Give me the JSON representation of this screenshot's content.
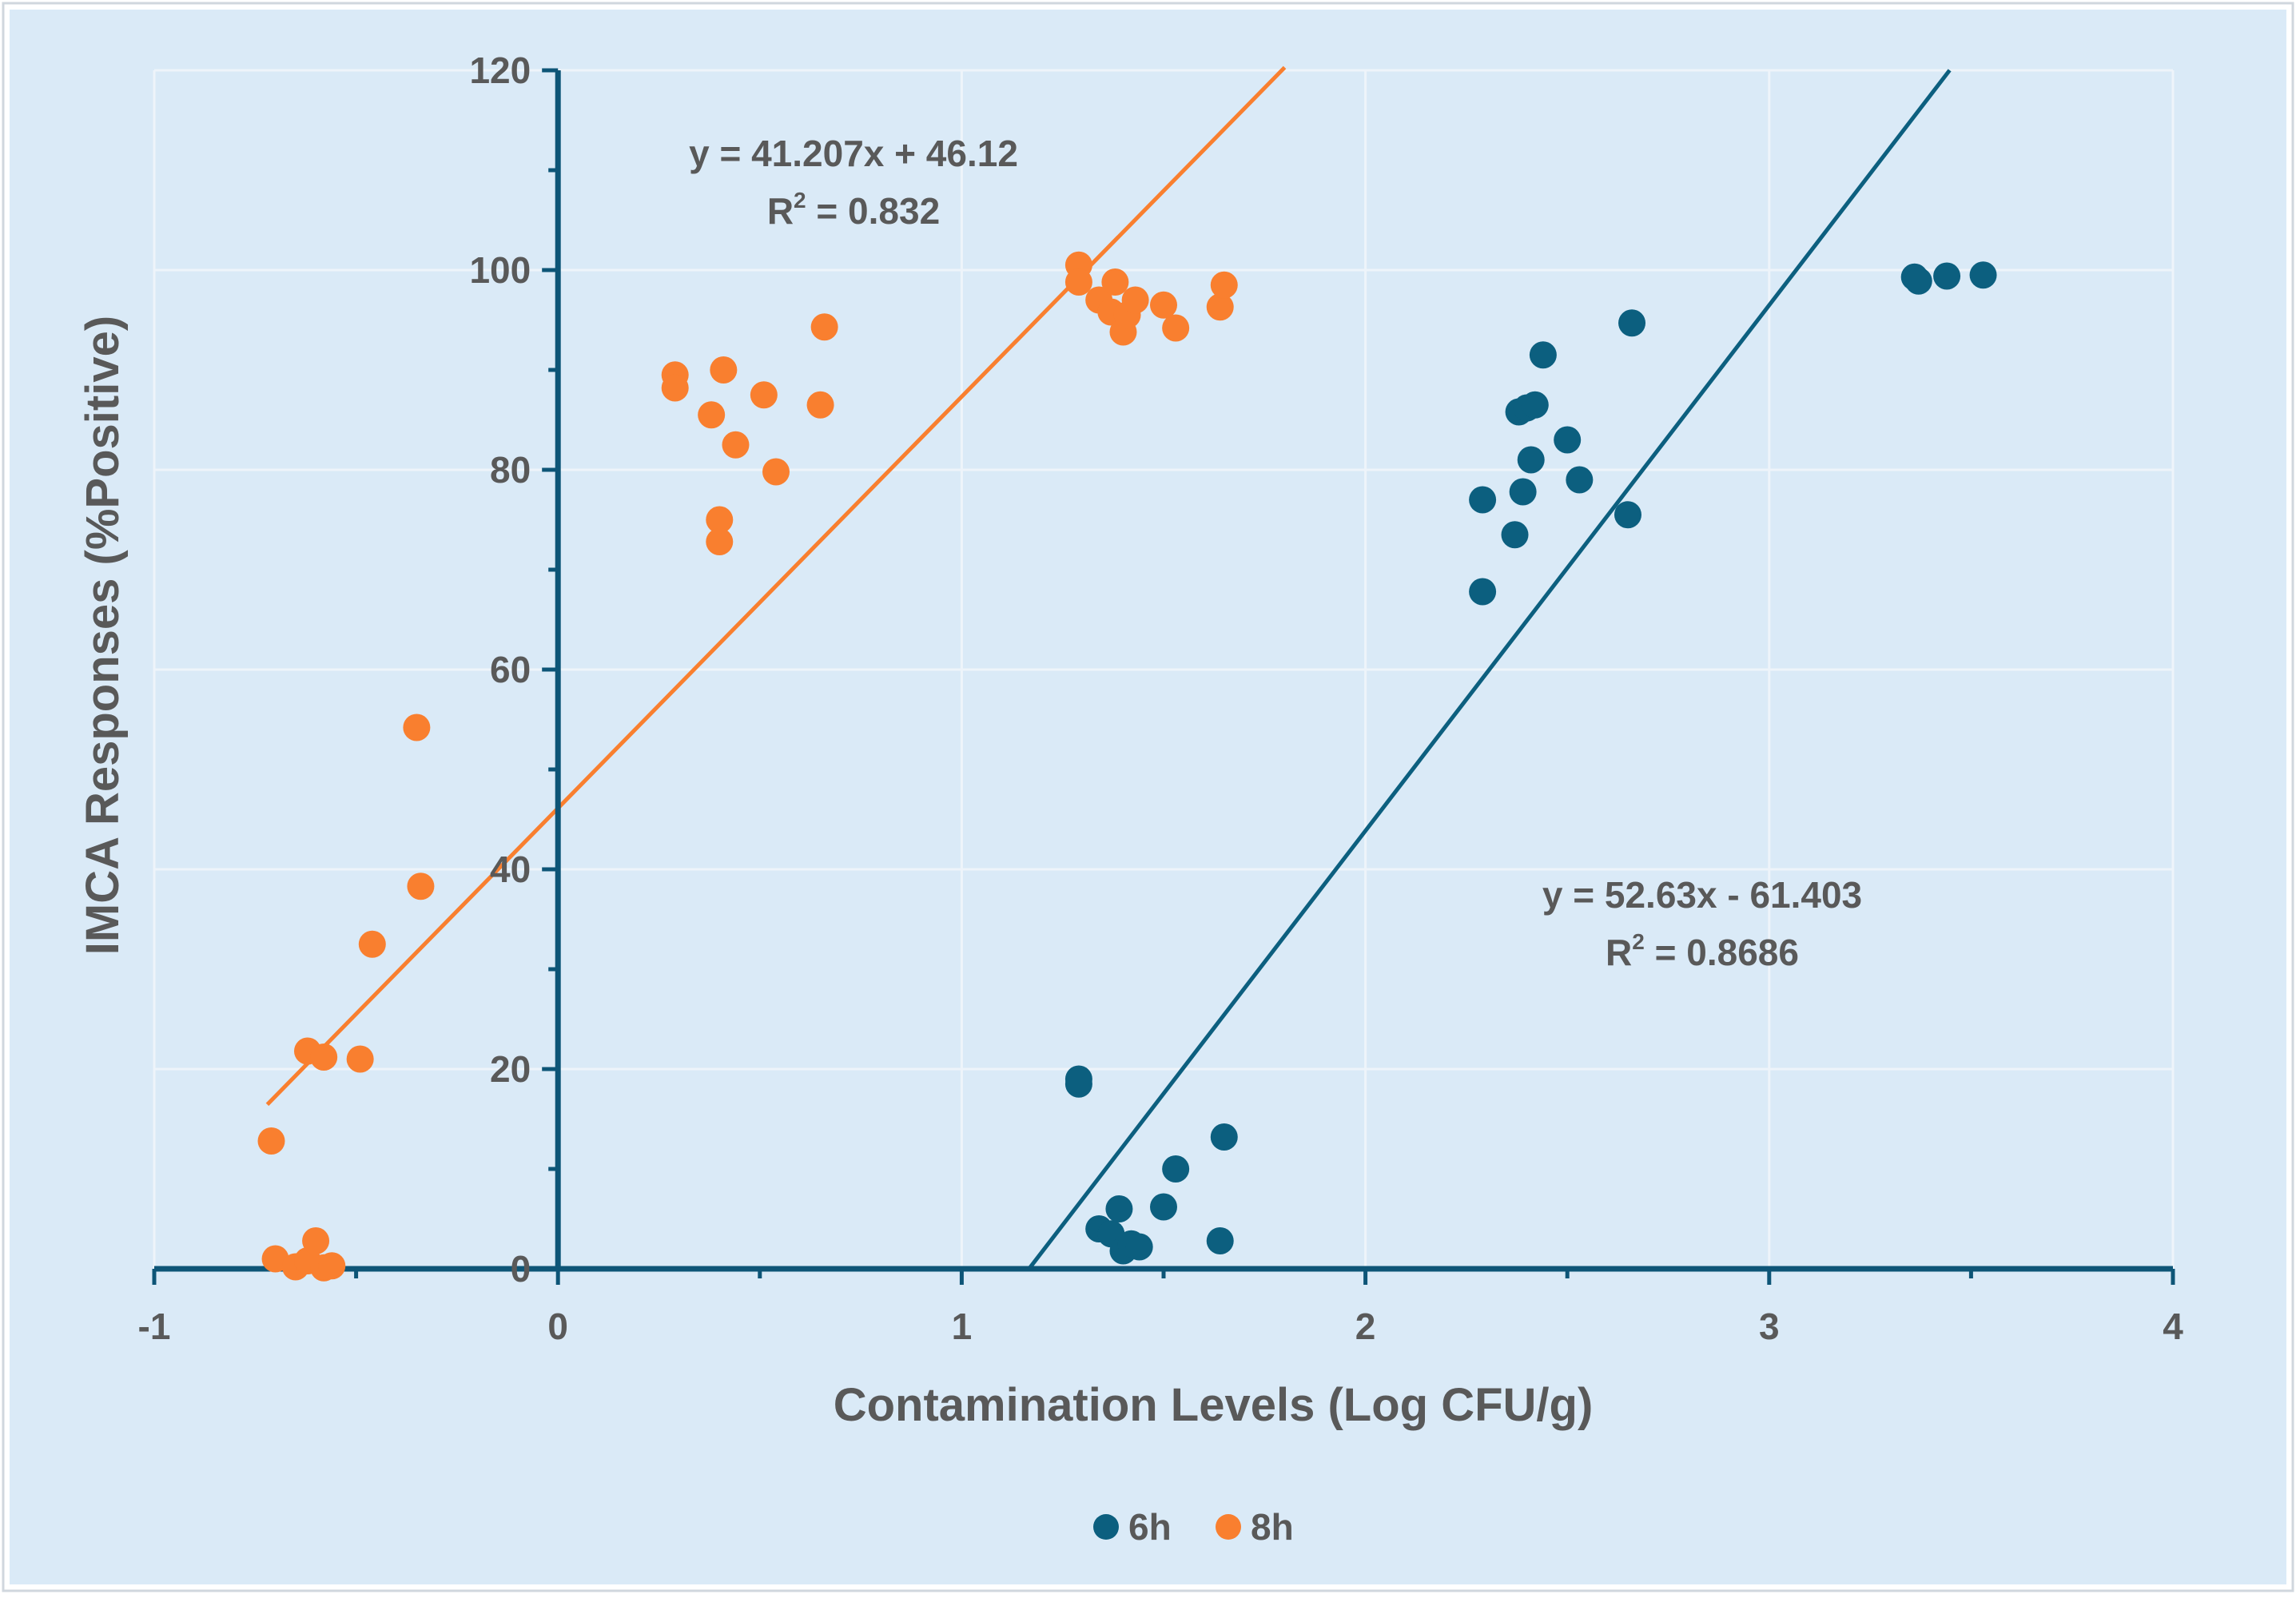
{
  "chart_data": {
    "type": "scatter",
    "title": "",
    "xlabel": "Contamination Levels (Log CFU/g)",
    "ylabel": "IMCA Responses (%Positive)",
    "xlim": [
      -1,
      4
    ],
    "ylim": [
      0,
      120
    ],
    "x_ticks": [
      -1,
      0,
      1,
      2,
      3,
      4
    ],
    "y_ticks": [
      0,
      20,
      40,
      60,
      80,
      100,
      120
    ],
    "grid": true,
    "legend_position": "bottom-center",
    "colors": {
      "background": "#daeaf7",
      "axis": "#0d5577",
      "grid": "#eef4fa",
      "series_6h": "#0c5f7f",
      "series_8h": "#f97f2f",
      "text": "#595959"
    },
    "series": [
      {
        "name": "6h",
        "color": "#0c5f7f",
        "points": [
          {
            "x": 1.29,
            "y": 18.5
          },
          {
            "x": 1.29,
            "y": 19.0
          },
          {
            "x": 1.34,
            "y": 4.0
          },
          {
            "x": 1.37,
            "y": 3.5
          },
          {
            "x": 1.39,
            "y": 6.0
          },
          {
            "x": 1.4,
            "y": 1.8
          },
          {
            "x": 1.42,
            "y": 2.5
          },
          {
            "x": 1.44,
            "y": 2.2
          },
          {
            "x": 1.5,
            "y": 6.2
          },
          {
            "x": 1.53,
            "y": 10.0
          },
          {
            "x": 1.64,
            "y": 2.8
          },
          {
            "x": 1.65,
            "y": 13.2
          },
          {
            "x": 2.29,
            "y": 77.0
          },
          {
            "x": 2.29,
            "y": 67.8
          },
          {
            "x": 2.37,
            "y": 73.5
          },
          {
            "x": 2.38,
            "y": 85.8
          },
          {
            "x": 2.39,
            "y": 77.8
          },
          {
            "x": 2.4,
            "y": 86.2
          },
          {
            "x": 2.41,
            "y": 81.0
          },
          {
            "x": 2.42,
            "y": 86.5
          },
          {
            "x": 2.44,
            "y": 91.5
          },
          {
            "x": 2.5,
            "y": 83.0
          },
          {
            "x": 2.53,
            "y": 79.0
          },
          {
            "x": 2.65,
            "y": 75.5
          },
          {
            "x": 2.66,
            "y": 94.7
          },
          {
            "x": 3.36,
            "y": 99.3
          },
          {
            "x": 3.37,
            "y": 98.9
          },
          {
            "x": 3.44,
            "y": 99.4
          },
          {
            "x": 3.53,
            "y": 99.5
          }
        ]
      },
      {
        "name": "8h",
        "color": "#f97f2f",
        "points": [
          {
            "x": -0.71,
            "y": 12.8
          },
          {
            "x": -0.7,
            "y": 1.0
          },
          {
            "x": -0.65,
            "y": 0.2
          },
          {
            "x": -0.62,
            "y": 0.8
          },
          {
            "x": -0.6,
            "y": 2.8
          },
          {
            "x": -0.58,
            "y": 0.1
          },
          {
            "x": -0.56,
            "y": 0.3
          },
          {
            "x": -0.62,
            "y": 21.8
          },
          {
            "x": -0.58,
            "y": 21.2
          },
          {
            "x": -0.49,
            "y": 21.0
          },
          {
            "x": -0.46,
            "y": 32.5
          },
          {
            "x": -0.35,
            "y": 54.2
          },
          {
            "x": -0.34,
            "y": 38.3
          },
          {
            "x": 0.29,
            "y": 89.5
          },
          {
            "x": 0.29,
            "y": 88.2
          },
          {
            "x": 0.38,
            "y": 85.5
          },
          {
            "x": 0.4,
            "y": 75.0
          },
          {
            "x": 0.4,
            "y": 72.8
          },
          {
            "x": 0.41,
            "y": 90.0
          },
          {
            "x": 0.44,
            "y": 82.5
          },
          {
            "x": 0.51,
            "y": 87.5
          },
          {
            "x": 0.54,
            "y": 79.8
          },
          {
            "x": 0.65,
            "y": 86.5
          },
          {
            "x": 0.66,
            "y": 94.3
          },
          {
            "x": 1.29,
            "y": 100.5
          },
          {
            "x": 1.29,
            "y": 98.8
          },
          {
            "x": 1.34,
            "y": 97.0
          },
          {
            "x": 1.37,
            "y": 95.8
          },
          {
            "x": 1.38,
            "y": 98.8
          },
          {
            "x": 1.4,
            "y": 93.8
          },
          {
            "x": 1.41,
            "y": 95.5
          },
          {
            "x": 1.43,
            "y": 97.0
          },
          {
            "x": 1.5,
            "y": 96.5
          },
          {
            "x": 1.53,
            "y": 94.2
          },
          {
            "x": 1.64,
            "y": 96.3
          },
          {
            "x": 1.65,
            "y": 98.5
          }
        ]
      }
    ],
    "trendlines": [
      {
        "series": "8h",
        "slope": 41.207,
        "intercept": 46.12,
        "x_range": [
          -0.72,
          1.8
        ],
        "equation": "y = 41.207x + 46.12",
        "r2_prefix": "R",
        "r2_sup": "2",
        "r2_value": " = 0.832"
      },
      {
        "series": "6h",
        "slope": 52.63,
        "intercept": -61.403,
        "x_range": [
          1.167,
          3.447
        ],
        "equation": "y = 52.63x - 61.403",
        "r2_prefix": "R",
        "r2_sup": "2",
        "r2_value": " = 0.8686"
      }
    ],
    "legend": [
      {
        "label": "6h",
        "color": "#0c5f7f"
      },
      {
        "label": "8h",
        "color": "#f97f2f"
      }
    ]
  }
}
